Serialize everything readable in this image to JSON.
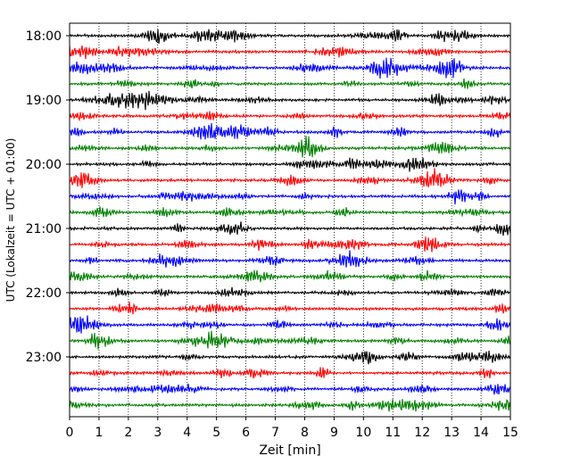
{
  "chart_data": {
    "type": "line",
    "title": "",
    "xlabel": "Zeit  [min]",
    "ylabel": "UTC (Lokalzeit = UTC + 01:00)",
    "xlim": [
      0,
      15
    ],
    "x_ticks": [
      0,
      1,
      2,
      3,
      4,
      5,
      6,
      7,
      8,
      9,
      10,
      11,
      12,
      13,
      14,
      15
    ],
    "y_tick_labels": [
      "18:00",
      "19:00",
      "20:00",
      "21:00",
      "22:00",
      "23:00"
    ],
    "grid": "vertical dotted at each minute",
    "trace_start_times": [
      "18:00",
      "18:15",
      "18:30",
      "18:45",
      "19:00",
      "19:15",
      "19:30",
      "19:45",
      "20:00",
      "20:15",
      "20:30",
      "20:45",
      "21:00",
      "21:15",
      "21:30",
      "21:45",
      "22:00",
      "22:15",
      "22:30",
      "22:45",
      "23:00",
      "23:15",
      "23:30",
      "23:45"
    ],
    "trace_color_cycle": [
      "#000000",
      "#ff0000",
      "#0000ff",
      "#008000"
    ]
  }
}
